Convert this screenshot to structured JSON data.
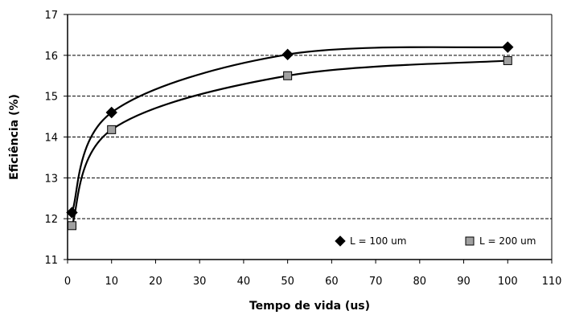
{
  "chart_data": {
    "type": "line",
    "title": "",
    "xlabel": "Tempo de vida (us)",
    "ylabel": "Eficiência (%)",
    "xlim": [
      0,
      110
    ],
    "ylim": [
      11,
      17
    ],
    "xticks": [
      0,
      10,
      20,
      30,
      40,
      50,
      60,
      70,
      80,
      90,
      100,
      110
    ],
    "yticks": [
      11,
      12,
      13,
      14,
      15,
      16,
      17
    ],
    "grid": "horizontal dashed",
    "legend_position": "bottom-right",
    "series": [
      {
        "name": "L = 100 um",
        "marker": "diamond",
        "color": "#000000",
        "x": [
          1,
          10,
          50,
          100
        ],
        "y": [
          12.15,
          14.6,
          16.02,
          16.2
        ]
      },
      {
        "name": "L = 200 um",
        "marker": "square",
        "color": "#a0a0a0",
        "x": [
          1,
          10,
          50,
          100
        ],
        "y": [
          11.83,
          14.18,
          15.5,
          15.87
        ]
      }
    ]
  }
}
